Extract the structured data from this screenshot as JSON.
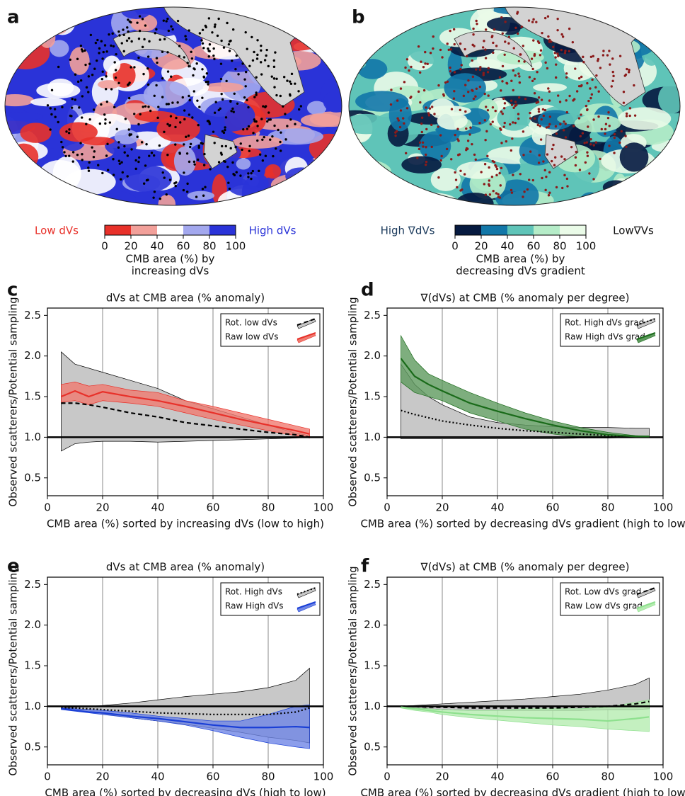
{
  "maps": [
    {
      "label": "a",
      "left_label": "Low dVs",
      "right_label": "High dVs",
      "colorbar": {
        "colors": [
          "#e8312a",
          "#f2a09a",
          "#ffffff",
          "#a3a8ee",
          "#2a33d8"
        ],
        "ticks": [
          0,
          20,
          40,
          60,
          80,
          100
        ]
      },
      "caption": [
        "CMB area (%) by",
        "increasing dVs"
      ]
    },
    {
      "label": "b",
      "left_label": "High ∇dVs",
      "right_label": "Low∇Vs",
      "colorbar": {
        "colors": [
          "#061a40",
          "#1277a8",
          "#5fc4b8",
          "#b5ecc8",
          "#eafbe8"
        ],
        "ticks": [
          0,
          20,
          40,
          60,
          80,
          100
        ]
      },
      "caption": [
        "CMB area (%) by",
        "decreasing dVs gradient"
      ]
    }
  ],
  "chart_data": [
    {
      "type": "band-line",
      "label": "c",
      "title": "dVs at CMB area (% anomaly)",
      "xlabel": "CMB area (%) sorted by increasing dVs (low to high)",
      "ylabel": "Observed scatterers/Potential sampling",
      "xlim": [
        0,
        100
      ],
      "ylim": [
        0.28,
        2.59
      ],
      "xticks": [
        0,
        20,
        40,
        60,
        80,
        100
      ],
      "yticks": [
        0.5,
        {
          "value": 1,
          "label": "1.0"
        },
        1.5,
        {
          "value": 2,
          "label": "2.0"
        },
        2.5
      ],
      "grid": "x",
      "legend": "upper right",
      "reference_line": 1,
      "x": [
        5,
        10,
        15,
        20,
        30,
        40,
        50,
        60,
        70,
        80,
        90,
        95
      ],
      "series": [
        {
          "name": "Rot. low dVs",
          "color": "#000000",
          "band_color": "#c8c8c8",
          "style": "dashed",
          "values": [
            1.42,
            1.42,
            1.4,
            1.37,
            1.3,
            1.25,
            1.18,
            1.14,
            1.1,
            1.06,
            1.03,
            1.0
          ],
          "band_lower": [
            0.83,
            0.92,
            0.94,
            0.95,
            0.95,
            0.94,
            0.95,
            0.96,
            0.97,
            0.98,
            0.99,
            1.0
          ],
          "band_upper": [
            2.05,
            1.9,
            1.85,
            1.8,
            1.7,
            1.6,
            1.45,
            1.35,
            1.25,
            1.15,
            1.05,
            1.02
          ]
        },
        {
          "name": "Raw low dVs",
          "color": "#e8312a",
          "band_color": "#f07b70",
          "style": "solid",
          "values": [
            1.5,
            1.57,
            1.5,
            1.56,
            1.5,
            1.45,
            1.38,
            1.3,
            1.22,
            1.15,
            1.08,
            1.04
          ],
          "band_lower": [
            1.43,
            1.45,
            1.4,
            1.45,
            1.42,
            1.38,
            1.3,
            1.22,
            1.15,
            1.08,
            1.02,
            0.99
          ],
          "band_upper": [
            1.65,
            1.68,
            1.63,
            1.65,
            1.58,
            1.55,
            1.45,
            1.38,
            1.3,
            1.22,
            1.14,
            1.1
          ]
        }
      ]
    },
    {
      "type": "band-line",
      "label": "d",
      "title": "∇(dVs) at CMB (% anomaly per degree)",
      "xlabel": "CMB area (%) sorted by decreasing dVs gradient (high to low)",
      "ylabel": "Observed scatterers/Potential sampling",
      "xlim": [
        0,
        100
      ],
      "ylim": [
        0.28,
        2.59
      ],
      "xticks": [
        0,
        20,
        40,
        60,
        80,
        100
      ],
      "yticks": [
        0.5,
        {
          "value": 1,
          "label": "1.0"
        },
        1.5,
        {
          "value": 2,
          "label": "2.0"
        },
        2.5
      ],
      "grid": "x",
      "legend": "upper right",
      "reference_line": 1,
      "x": [
        5,
        10,
        15,
        20,
        30,
        40,
        50,
        60,
        70,
        80,
        90,
        95
      ],
      "series": [
        {
          "name": "Rot. High dVs grad.",
          "color": "#000000",
          "band_color": "#c8c8c8",
          "style": "dotted",
          "values": [
            1.33,
            1.28,
            1.24,
            1.2,
            1.15,
            1.11,
            1.08,
            1.06,
            1.04,
            1.02,
            1.01,
            1.0
          ],
          "band_lower": [
            0.98,
            0.98,
            0.98,
            0.98,
            0.98,
            0.98,
            0.98,
            0.98,
            0.99,
            0.99,
            1.0,
            1.0
          ],
          "band_upper": [
            1.9,
            1.65,
            1.5,
            1.4,
            1.25,
            1.18,
            1.15,
            1.13,
            1.12,
            1.12,
            1.11,
            1.11
          ]
        },
        {
          "name": "Raw High dVs grad.",
          "color": "#1a6b1a",
          "band_color": "#5e9a5e",
          "style": "solid",
          "values": [
            1.97,
            1.75,
            1.65,
            1.57,
            1.42,
            1.32,
            1.23,
            1.15,
            1.08,
            1.03,
            1.01,
            1.01
          ],
          "band_lower": [
            1.68,
            1.55,
            1.5,
            1.45,
            1.3,
            1.2,
            1.1,
            1.04,
            1.0,
            1.0,
            1.0,
            1.0
          ],
          "band_upper": [
            2.25,
            1.95,
            1.78,
            1.7,
            1.55,
            1.42,
            1.3,
            1.2,
            1.12,
            1.06,
            1.02,
            1.01
          ]
        }
      ]
    },
    {
      "type": "band-line",
      "label": "e",
      "title": "dVs at CMB area (% anomaly)",
      "xlabel": "CMB area (%) sorted by decreasing dVs (high to low)",
      "ylabel": "Observed scatterers/Potential sampling",
      "xlim": [
        0,
        100
      ],
      "ylim": [
        0.28,
        2.59
      ],
      "xticks": [
        0,
        20,
        40,
        60,
        80,
        100
      ],
      "yticks": [
        0.5,
        {
          "value": 1,
          "label": "1.0"
        },
        1.5,
        {
          "value": 2,
          "label": "2.0"
        },
        2.5
      ],
      "grid": "x",
      "legend": "upper right",
      "reference_line": 1,
      "x": [
        5,
        10,
        15,
        20,
        30,
        40,
        50,
        60,
        70,
        80,
        90,
        95
      ],
      "series": [
        {
          "name": "Rot. High dVs",
          "color": "#000000",
          "band_color": "#c8c8c8",
          "style": "dotted",
          "values": [
            0.98,
            0.98,
            0.97,
            0.96,
            0.94,
            0.92,
            0.91,
            0.9,
            0.9,
            0.9,
            0.93,
            0.98
          ],
          "band_lower": [
            0.97,
            0.95,
            0.93,
            0.91,
            0.86,
            0.82,
            0.78,
            0.73,
            0.68,
            0.62,
            0.58,
            0.55
          ],
          "band_upper": [
            0.98,
            0.99,
            1.0,
            1.01,
            1.04,
            1.08,
            1.12,
            1.15,
            1.18,
            1.23,
            1.32,
            1.47
          ]
        },
        {
          "name": "Raw High dVs",
          "color": "#1a3fd6",
          "band_color": "#6f86e6",
          "style": "solid",
          "values": [
            0.97,
            0.95,
            0.93,
            0.92,
            0.88,
            0.85,
            0.81,
            0.77,
            0.74,
            0.74,
            0.75,
            0.74
          ],
          "band_lower": [
            0.96,
            0.94,
            0.92,
            0.9,
            0.86,
            0.82,
            0.77,
            0.7,
            0.62,
            0.55,
            0.5,
            0.48
          ],
          "band_upper": [
            0.98,
            0.97,
            0.96,
            0.95,
            0.92,
            0.88,
            0.85,
            0.82,
            0.82,
            0.9,
            1.0,
            1.02
          ]
        }
      ]
    },
    {
      "type": "band-line",
      "label": "f",
      "title": "∇(dVs) at CMB (% anomaly per degree)",
      "xlabel": "CMB area (%) sorted by decreasing dVs gradient (high to low)",
      "ylabel": "Observed scatterers/Potential sampling",
      "xlim": [
        0,
        100
      ],
      "ylim": [
        0.28,
        2.59
      ],
      "xticks": [
        0,
        20,
        40,
        60,
        80,
        100
      ],
      "yticks": [
        0.5,
        {
          "value": 1,
          "label": "1.0"
        },
        1.5,
        {
          "value": 2,
          "label": "2.0"
        },
        2.5
      ],
      "grid": "x",
      "legend": "upper right",
      "reference_line": 1,
      "x": [
        5,
        10,
        15,
        20,
        30,
        40,
        50,
        60,
        70,
        80,
        90,
        95
      ],
      "series": [
        {
          "name": "Rot. Low dVs grad.",
          "color": "#000000",
          "band_color": "#c8c8c8",
          "style": "dashed",
          "values": [
            1.0,
            1.0,
            0.99,
            0.99,
            0.98,
            0.98,
            0.98,
            0.98,
            0.99,
            1.0,
            1.03,
            1.06
          ],
          "band_lower": [
            0.99,
            0.98,
            0.97,
            0.96,
            0.95,
            0.95,
            0.95,
            0.95,
            0.95,
            0.96,
            0.96,
            0.97
          ],
          "band_upper": [
            1.0,
            1.01,
            1.02,
            1.03,
            1.05,
            1.07,
            1.09,
            1.12,
            1.15,
            1.2,
            1.27,
            1.35
          ]
        },
        {
          "name": "Raw Low dVs grad.",
          "color": "#8ee08e",
          "band_color": "#b5ecb0",
          "style": "solid",
          "values": [
            0.99,
            0.97,
            0.95,
            0.93,
            0.9,
            0.88,
            0.86,
            0.85,
            0.84,
            0.82,
            0.85,
            0.87
          ],
          "band_lower": [
            0.98,
            0.95,
            0.93,
            0.9,
            0.86,
            0.83,
            0.8,
            0.77,
            0.75,
            0.72,
            0.7,
            0.69
          ],
          "band_upper": [
            0.99,
            0.98,
            0.97,
            0.96,
            0.95,
            0.95,
            0.97,
            0.97,
            0.97,
            0.99,
            1.05,
            1.08
          ]
        }
      ]
    }
  ]
}
